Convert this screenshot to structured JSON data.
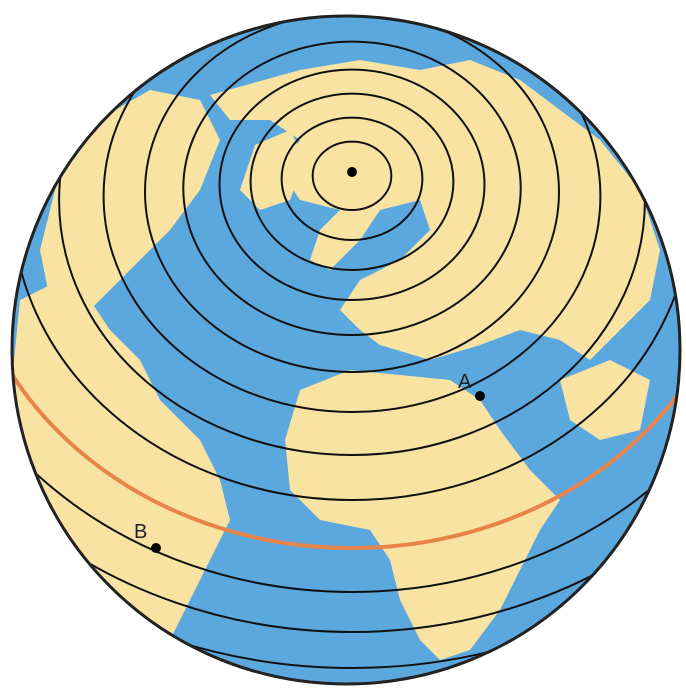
{
  "points": [
    {
      "label": "A"
    },
    {
      "label": "B"
    }
  ]
}
